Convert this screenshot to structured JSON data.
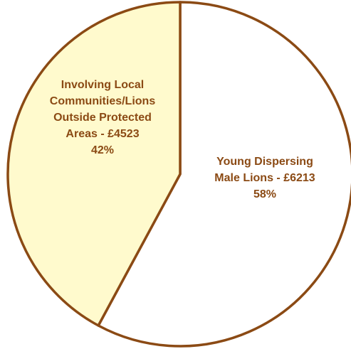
{
  "chart_data": {
    "type": "pie",
    "slices": [
      {
        "label_lines": [
          "Young Dispersing",
          "Male Lions - £6213",
          "58%"
        ],
        "value": 6213,
        "percent": 58,
        "fill": "#ffffff"
      },
      {
        "label_lines": [
          "Involving Local",
          "Communities/Lions",
          "Outside Protected",
          "Areas - £4523",
          "42%"
        ],
        "value": 4523,
        "percent": 42,
        "fill": "#fffacd"
      }
    ],
    "start_angle_deg": 0,
    "direction": "clockwise",
    "stroke_color": "#8b4a14",
    "label_color": "#8b4a14",
    "legend": "none"
  }
}
